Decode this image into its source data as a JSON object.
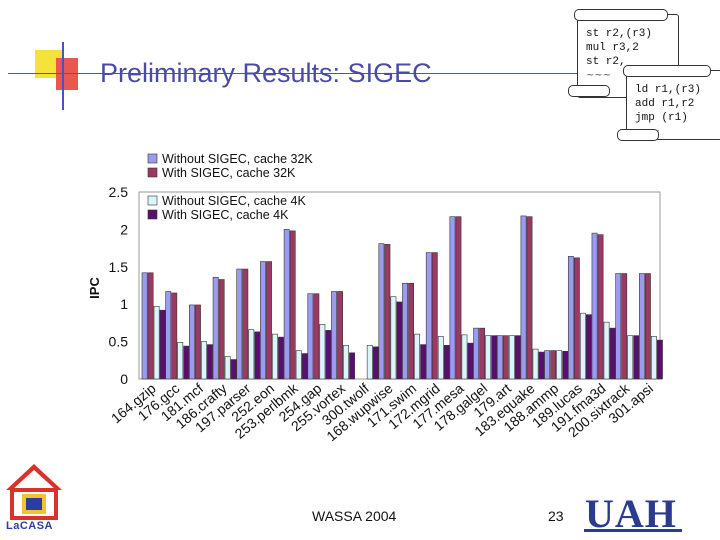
{
  "slide": {
    "title": "Preliminary Results: SIGEC",
    "footer_center": "WASSA 2004",
    "page_number": "23",
    "logo_left_text": "LaCASA",
    "logo_right_text": "UAH"
  },
  "code_scroll_1": {
    "lines": [
      "st r2,(r3)",
      "mul r3,2",
      "st r2,"
    ]
  },
  "code_scroll_2": {
    "lines": [
      "ld r1,(r3)",
      "add r1,r2",
      "jmp (r1)"
    ]
  },
  "colors": {
    "s1": "#9b9bf2",
    "s2": "#9a3a62",
    "s3": "#dcf4fb",
    "s4": "#5a0f6e",
    "title": "#4a4aa8"
  },
  "chart_data": {
    "type": "bar",
    "title": "",
    "xlabel": "",
    "ylabel": "IPC",
    "ylim": [
      0,
      2.5
    ],
    "yticks": [
      "0",
      "0.5",
      "1",
      "1.5",
      "2",
      "2.5"
    ],
    "categories": [
      "164.gzip",
      "176.gcc",
      "181.mcf",
      "186.crafty",
      "197.parser",
      "252.eon",
      "253.perlbmk",
      "254.gap",
      "255.vortex",
      "300.twolf",
      "168.wupwise",
      "171.swim",
      "172.mgrid",
      "177.mesa",
      "178.galgel",
      "179.art",
      "183.equake",
      "188.ammp",
      "189.lucas",
      "191.fma3d",
      "200.sixtrack",
      "301.apsi"
    ],
    "series": [
      {
        "name": "Without SIGEC, cache 32K",
        "values": [
          1.42,
          1.17,
          0.99,
          1.36,
          1.47,
          1.57,
          2.0,
          1.14,
          1.17,
          0,
          1.81,
          1.28,
          1.69,
          2.17,
          0.68,
          0.58,
          2.18,
          0.38,
          1.64,
          1.95,
          1.41,
          1.41
        ]
      },
      {
        "name": "With SIGEC, cache 32K",
        "values": [
          1.42,
          1.15,
          0.99,
          1.33,
          1.47,
          1.57,
          1.98,
          1.14,
          1.17,
          0,
          1.8,
          1.28,
          1.69,
          2.17,
          0.68,
          0.58,
          2.17,
          0.38,
          1.62,
          1.93,
          1.41,
          1.41
        ]
      },
      {
        "name": "Without SIGEC, cache 4K",
        "values": [
          0.97,
          0.49,
          0.5,
          0.3,
          0.66,
          0.6,
          0.38,
          0.73,
          0.45,
          0.45,
          1.1,
          0.6,
          0.57,
          0.59,
          0.58,
          0.58,
          0.4,
          0.38,
          0.88,
          0.76,
          0.58,
          0.57
        ]
      },
      {
        "name": "With SIGEC, cache 4K",
        "values": [
          0.92,
          0.44,
          0.46,
          0.26,
          0.63,
          0.56,
          0.34,
          0.65,
          0.35,
          0.43,
          1.03,
          0.46,
          0.45,
          0.48,
          0.58,
          0.58,
          0.36,
          0.37,
          0.86,
          0.68,
          0.58,
          0.52
        ]
      }
    ],
    "legend": {
      "entries": [
        "Without SIGEC, cache 32K",
        "With SIGEC, cache 32K",
        "Without SIGEC, cache 4K",
        "With SIGEC, cache 4K"
      ],
      "placement": "top-left"
    },
    "grid": false
  }
}
